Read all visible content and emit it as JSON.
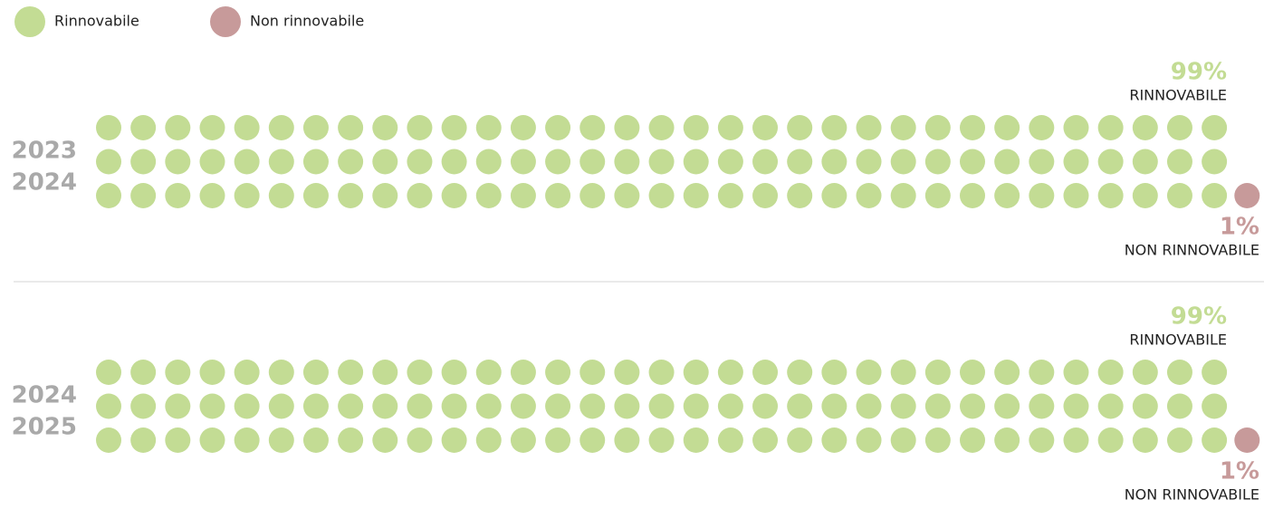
{
  "legend": {
    "items": [
      {
        "name": "Rinnovabile",
        "color": "#c3dc94"
      },
      {
        "name": "Non rinnovabile",
        "color": "#c79a9a"
      }
    ]
  },
  "chart_data": [
    {
      "type": "waffle",
      "labels": [
        "2023",
        "2024"
      ],
      "values": [
        99,
        1
      ],
      "value_labels": [
        "99%",
        "1%"
      ],
      "captions": [
        "RINNOVABILE",
        "NON RINNOVABILE"
      ]
    },
    {
      "type": "waffle",
      "labels": [
        "2024",
        "2025"
      ],
      "values": [
        99,
        1
      ],
      "value_labels": [
        "99%",
        "1%"
      ],
      "captions": [
        "RINNOVABILE",
        "NON RINNOVABILE"
      ]
    }
  ]
}
